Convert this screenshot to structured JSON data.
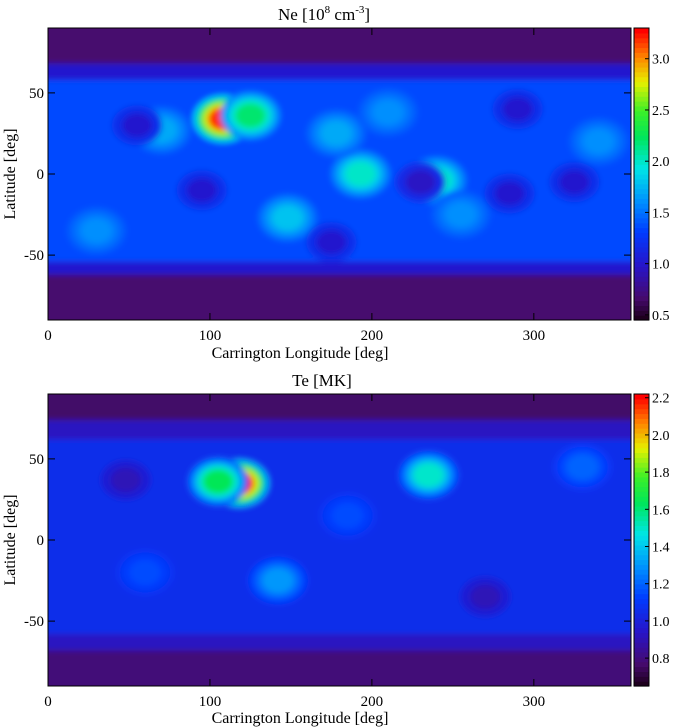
{
  "chart_data": [
    {
      "type": "heatmap",
      "title_main": "Ne [10",
      "title_sup1": "8",
      "title_mid": " cm",
      "title_sup2": "-3",
      "title_end": "]",
      "xlabel": "Carrington Longitude [deg]",
      "ylabel": "Latitude [deg]",
      "xlim": [
        0,
        360
      ],
      "ylim": [
        -90,
        90
      ],
      "x_ticks": [
        0,
        100,
        200,
        300
      ],
      "y_ticks": [
        50,
        0,
        -50
      ],
      "x_tick_labels": [
        "0",
        "100",
        "200",
        "300"
      ],
      "y_tick_labels": [
        "50",
        "0",
        "-50"
      ],
      "colorbar": {
        "range": [
          0.45,
          3.3
        ],
        "ticks": [
          0.5,
          1.0,
          1.5,
          2.0,
          2.5,
          3.0
        ],
        "tick_labels": [
          "0.5",
          "1.0",
          "1.5",
          "2.0",
          "2.5",
          "3.0"
        ]
      },
      "background_level": 1.35,
      "bands": [
        {
          "lat_min": -90,
          "lat_max": -62,
          "value": 0.65
        },
        {
          "lat_min": -62,
          "lat_max": -54,
          "value": 1.0
        },
        {
          "lat_min": 58,
          "lat_max": 68,
          "value": 1.0
        },
        {
          "lat_min": 68,
          "lat_max": 90,
          "value": 0.65
        }
      ],
      "features": [
        {
          "lon": 108,
          "lat": 34,
          "value": 3.2
        },
        {
          "lon": 125,
          "lat": 36,
          "value": 2.2
        },
        {
          "lon": 70,
          "lat": 27,
          "value": 1.7
        },
        {
          "lon": 193,
          "lat": 0,
          "value": 2.0
        },
        {
          "lon": 240,
          "lat": -4,
          "value": 2.0
        },
        {
          "lon": 148,
          "lat": -27,
          "value": 1.8
        },
        {
          "lon": 178,
          "lat": 25,
          "value": 1.7
        },
        {
          "lon": 210,
          "lat": 38,
          "value": 1.6
        },
        {
          "lon": 230,
          "lat": -5,
          "value": 0.95
        },
        {
          "lon": 285,
          "lat": -12,
          "value": 1.0
        },
        {
          "lon": 325,
          "lat": -5,
          "value": 1.0
        },
        {
          "lon": 55,
          "lat": 30,
          "value": 1.0
        },
        {
          "lon": 95,
          "lat": -10,
          "value": 1.0
        },
        {
          "lon": 175,
          "lat": -42,
          "value": 1.0
        },
        {
          "lon": 290,
          "lat": 40,
          "value": 1.0
        },
        {
          "lon": 30,
          "lat": -35,
          "value": 1.6
        },
        {
          "lon": 255,
          "lat": -25,
          "value": 1.6
        },
        {
          "lon": 340,
          "lat": 20,
          "value": 1.6
        }
      ]
    },
    {
      "type": "heatmap",
      "title": "Te [MK]",
      "xlabel": "Carrington Longitude [deg]",
      "ylabel": "Latitude [deg]",
      "xlim": [
        0,
        360
      ],
      "ylim": [
        -90,
        90
      ],
      "x_ticks": [
        0,
        100,
        200,
        300
      ],
      "y_ticks": [
        50,
        0,
        -50
      ],
      "x_tick_labels": [
        "0",
        "100",
        "200",
        "300"
      ],
      "y_tick_labels": [
        "50",
        "0",
        "-50"
      ],
      "colorbar": {
        "range": [
          0.65,
          2.22
        ],
        "ticks": [
          0.8,
          1.0,
          1.2,
          1.4,
          1.6,
          1.8,
          2.0,
          2.2
        ],
        "tick_labels": [
          "0.8",
          "1.0",
          "1.2",
          "1.4",
          "1.6",
          "1.8",
          "2.0",
          "2.2"
        ]
      },
      "background_level": 1.05,
      "bands": [
        {
          "lat_min": -90,
          "lat_max": -68,
          "value": 0.78
        },
        {
          "lat_min": -68,
          "lat_max": -58,
          "value": 0.92
        },
        {
          "lat_min": 62,
          "lat_max": 74,
          "value": 0.92
        },
        {
          "lat_min": 74,
          "lat_max": 90,
          "value": 0.75
        }
      ],
      "features": [
        {
          "lon": 118,
          "lat": 35,
          "value": 2.2
        },
        {
          "lon": 105,
          "lat": 36,
          "value": 1.65
        },
        {
          "lon": 235,
          "lat": 40,
          "value": 1.5
        },
        {
          "lon": 142,
          "lat": -25,
          "value": 1.3
        },
        {
          "lon": 48,
          "lat": 37,
          "value": 0.9
        },
        {
          "lon": 330,
          "lat": 45,
          "value": 1.2
        },
        {
          "lon": 270,
          "lat": -35,
          "value": 0.9
        },
        {
          "lon": 60,
          "lat": -20,
          "value": 1.15
        },
        {
          "lon": 185,
          "lat": 15,
          "value": 1.15
        }
      ]
    }
  ]
}
